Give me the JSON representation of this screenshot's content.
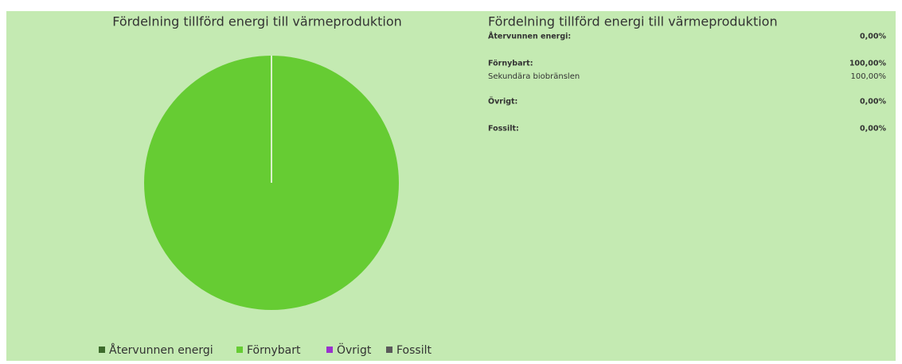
{
  "chart_data": {
    "type": "pie",
    "title": "Fördelning tillförd energi till värmeproduktion",
    "categories": [
      "Återvunnen energi",
      "Förnybart",
      "Övrigt",
      "Fossilt"
    ],
    "values": [
      0,
      100,
      0,
      0
    ],
    "colors": [
      "#3d6b2c",
      "#66cc33",
      "#9933cc",
      "#5a5a5a"
    ],
    "legend": "bottom"
  },
  "table": {
    "title": "Fördelning tillförd energi till värmeproduktion",
    "rows": [
      {
        "label": "Återvunnen energi:",
        "value": "0,00%",
        "bold": true
      },
      {
        "label": "Förnybart:",
        "value": "100,00%",
        "bold": true
      },
      {
        "label": "Sekundära biobränslen",
        "value": "100,00%",
        "bold": false
      },
      {
        "label": "Övrigt:",
        "value": "0,00%",
        "bold": true
      },
      {
        "label": "Fossilt:",
        "value": "0,00%",
        "bold": true
      }
    ]
  }
}
